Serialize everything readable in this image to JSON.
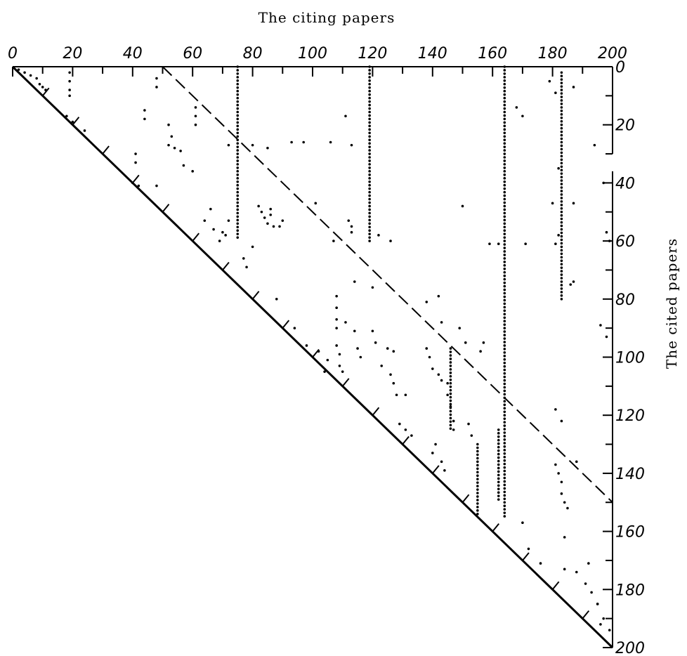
{
  "chart_data": {
    "type": "scatter",
    "title": "",
    "xlabel": "The citing papers",
    "ylabel": "The cited papers",
    "xlim": [
      0,
      200
    ],
    "ylim": [
      0,
      200
    ],
    "x_tick_labels": [
      "0",
      "20",
      "40",
      "60",
      "80",
      "100",
      "120",
      "140",
      "160",
      "180",
      "200"
    ],
    "y_tick_labels": [
      "0",
      "20",
      "40",
      "60",
      "80",
      "100",
      "120",
      "140",
      "160",
      "180",
      "200"
    ],
    "grid": false,
    "reference_lines": [
      {
        "style": "solid",
        "from": [
          0,
          0
        ],
        "to": [
          200,
          200
        ]
      },
      {
        "style": "dashed",
        "from": [
          50,
          0
        ],
        "to": [
          200,
          150
        ]
      }
    ],
    "columns": [
      {
        "x": 75,
        "y_from": 0,
        "y_to": 60
      },
      {
        "x": 119,
        "y_from": 0,
        "y_to": 61
      },
      {
        "x": 164,
        "y_from": 0,
        "y_to": 155
      },
      {
        "x": 183,
        "y_from": 2,
        "y_to": 81
      },
      {
        "x": 146,
        "y_from": 97,
        "y_to": 125
      },
      {
        "x": 155,
        "y_from": 130,
        "y_to": 154
      },
      {
        "x": 162,
        "y_from": 125,
        "y_to": 150
      }
    ],
    "points": [
      [
        2,
        1
      ],
      [
        4,
        2
      ],
      [
        6,
        3
      ],
      [
        8,
        4
      ],
      [
        9,
        6
      ],
      [
        10,
        7
      ],
      [
        11,
        8
      ],
      [
        19,
        2
      ],
      [
        19,
        5
      ],
      [
        19,
        8
      ],
      [
        19,
        10
      ],
      [
        18,
        17
      ],
      [
        20,
        19
      ],
      [
        24,
        22
      ],
      [
        41,
        30
      ],
      [
        41,
        33
      ],
      [
        40,
        40
      ],
      [
        42,
        41
      ],
      [
        48,
        41
      ],
      [
        44,
        15
      ],
      [
        44,
        18
      ],
      [
        48,
        4
      ],
      [
        48,
        7
      ],
      [
        52,
        20
      ],
      [
        53,
        24
      ],
      [
        52,
        27
      ],
      [
        54,
        28
      ],
      [
        56,
        29
      ],
      [
        57,
        34
      ],
      [
        60,
        36
      ],
      [
        61,
        14
      ],
      [
        61,
        17
      ],
      [
        61,
        20
      ],
      [
        72,
        27
      ],
      [
        80,
        27
      ],
      [
        85,
        28
      ],
      [
        64,
        53
      ],
      [
        66,
        49
      ],
      [
        67,
        56
      ],
      [
        69,
        60
      ],
      [
        71,
        58
      ],
      [
        72,
        53
      ],
      [
        70,
        57
      ],
      [
        77,
        66
      ],
      [
        78,
        69
      ],
      [
        82,
        48
      ],
      [
        83,
        50
      ],
      [
        84,
        52
      ],
      [
        85,
        54
      ],
      [
        87,
        55
      ],
      [
        89,
        55
      ],
      [
        90,
        53
      ],
      [
        86,
        49
      ],
      [
        86,
        51
      ],
      [
        80,
        62
      ],
      [
        93,
        26
      ],
      [
        97,
        26
      ],
      [
        106,
        26
      ],
      [
        113,
        27
      ],
      [
        101,
        47
      ],
      [
        111,
        17
      ],
      [
        112,
        53
      ],
      [
        113,
        55
      ],
      [
        113,
        57
      ],
      [
        107,
        60
      ],
      [
        122,
        58
      ],
      [
        126,
        60
      ],
      [
        114,
        74
      ],
      [
        120,
        76
      ],
      [
        88,
        80
      ],
      [
        94,
        90
      ],
      [
        98,
        96
      ],
      [
        102,
        98
      ],
      [
        105,
        101
      ],
      [
        104,
        105
      ],
      [
        108,
        79
      ],
      [
        108,
        83
      ],
      [
        108,
        87
      ],
      [
        108,
        90
      ],
      [
        108,
        96
      ],
      [
        109,
        99
      ],
      [
        109,
        103
      ],
      [
        110,
        105
      ],
      [
        111,
        88
      ],
      [
        114,
        91
      ],
      [
        115,
        97
      ],
      [
        116,
        100
      ],
      [
        120,
        91
      ],
      [
        121,
        95
      ],
      [
        123,
        103
      ],
      [
        126,
        106
      ],
      [
        127,
        109
      ],
      [
        128,
        113
      ],
      [
        131,
        113
      ],
      [
        125,
        97
      ],
      [
        127,
        98
      ],
      [
        129,
        123
      ],
      [
        131,
        125
      ],
      [
        133,
        127
      ],
      [
        138,
        97
      ],
      [
        139,
        100
      ],
      [
        140,
        104
      ],
      [
        142,
        106
      ],
      [
        143,
        108
      ],
      [
        145,
        109
      ],
      [
        145,
        113
      ],
      [
        146,
        117
      ],
      [
        147,
        122
      ],
      [
        147,
        125
      ],
      [
        141,
        130
      ],
      [
        140,
        133
      ],
      [
        143,
        136
      ],
      [
        144,
        139
      ],
      [
        138,
        81
      ],
      [
        142,
        79
      ],
      [
        143,
        88
      ],
      [
        150,
        48
      ],
      [
        149,
        90
      ],
      [
        151,
        95
      ],
      [
        157,
        95
      ],
      [
        156,
        98
      ],
      [
        152,
        123
      ],
      [
        153,
        127
      ],
      [
        159,
        61
      ],
      [
        162,
        61
      ],
      [
        171,
        61
      ],
      [
        168,
        14
      ],
      [
        170,
        17
      ],
      [
        179,
        5
      ],
      [
        181,
        9
      ],
      [
        187,
        7
      ],
      [
        180,
        47
      ],
      [
        181,
        61
      ],
      [
        187,
        47
      ],
      [
        182,
        35
      ],
      [
        186,
        75
      ],
      [
        187,
        74
      ],
      [
        182,
        58
      ],
      [
        181,
        118
      ],
      [
        183,
        122
      ],
      [
        181,
        137
      ],
      [
        182,
        140
      ],
      [
        183,
        143
      ],
      [
        183,
        147
      ],
      [
        184,
        150
      ],
      [
        185,
        152
      ],
      [
        188,
        136
      ],
      [
        170,
        157
      ],
      [
        172,
        166
      ],
      [
        176,
        171
      ],
      [
        184,
        173
      ],
      [
        191,
        178
      ],
      [
        195,
        185
      ],
      [
        197,
        190
      ],
      [
        199,
        194
      ],
      [
        194,
        27
      ],
      [
        197,
        40
      ],
      [
        198,
        57
      ],
      [
        199,
        60
      ],
      [
        196,
        89
      ],
      [
        198,
        93
      ],
      [
        193,
        181
      ],
      [
        195,
        185
      ],
      [
        196,
        192
      ],
      [
        184,
        162
      ],
      [
        188,
        174
      ],
      [
        192,
        171
      ]
    ]
  }
}
